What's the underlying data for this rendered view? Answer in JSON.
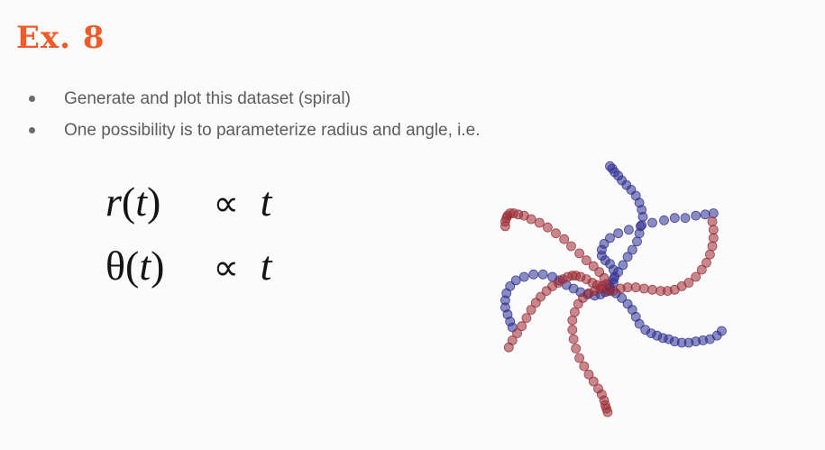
{
  "title": "Ex. 8",
  "bullets": [
    "Generate and plot this dataset (spiral)",
    "One possibility is to parameterize radius and angle, i.e."
  ],
  "formulas": [
    {
      "lhs_symbol": "r",
      "lhs_arg_open": "(",
      "lhs_arg": "t",
      "lhs_arg_close": ")",
      "operator": "∝",
      "rhs": "t"
    },
    {
      "lhs_symbol": "θ",
      "lhs_arg_open": "(",
      "lhs_arg": "t",
      "lhs_arg_close": ")",
      "operator": "∝",
      "rhs": "t"
    }
  ],
  "colors": {
    "title": "#f05a28",
    "class_a": "#2e2f8f",
    "class_b": "#9b2a33"
  },
  "chart_data": {
    "type": "scatter",
    "title": "",
    "xlabel": "",
    "ylabel": "",
    "grid": false,
    "axes_visible": false,
    "xlim": [
      -1.15,
      1.15
    ],
    "ylim": [
      -1.15,
      1.15
    ],
    "series": [
      {
        "color": "#2e2f8f",
        "arms": [
          {
            "t": [
              0.05,
              0.1,
              0.15,
              0.2,
              0.25,
              0.3,
              0.35,
              0.4,
              0.45,
              0.5,
              0.55,
              0.6,
              0.65,
              0.7,
              0.75,
              0.8,
              0.85,
              0.9,
              0.95,
              1.0
            ],
            "x": [
              0.05,
              0.08,
              0.09,
              0.08,
              0.05,
              0.01,
              -0.02,
              -0.02,
              0.0,
              0.05,
              0.12,
              0.21,
              0.31,
              0.41,
              0.51,
              0.6,
              0.69,
              0.78,
              0.86,
              0.93
            ],
            "y": [
              0.01,
              0.05,
              0.1,
              0.16,
              0.21,
              0.24,
              0.28,
              0.33,
              0.38,
              0.43,
              0.47,
              0.5,
              0.53,
              0.56,
              0.58,
              0.6,
              0.6,
              0.62,
              0.63,
              0.64
            ]
          },
          {
            "t": [
              0.05,
              0.1,
              0.15,
              0.2,
              0.25,
              0.3,
              0.35,
              0.4,
              0.45,
              0.5,
              0.55,
              0.6,
              0.65,
              0.7,
              0.75,
              0.8,
              0.85,
              0.9,
              0.95,
              1.0
            ],
            "x": [
              0.01,
              -0.03,
              -0.08,
              -0.14,
              -0.2,
              -0.26,
              -0.32,
              -0.38,
              -0.44,
              -0.52,
              -0.6,
              -0.68,
              -0.75,
              -0.8,
              -0.83,
              -0.84,
              -0.84,
              -0.82,
              -0.8,
              -0.78
            ],
            "y": [
              -0.03,
              -0.05,
              -0.06,
              -0.05,
              -0.03,
              0.0,
              0.03,
              0.07,
              0.1,
              0.12,
              0.12,
              0.1,
              0.07,
              0.02,
              -0.04,
              -0.1,
              -0.16,
              -0.22,
              -0.28,
              -0.33
            ]
          },
          {
            "t": [
              0.05,
              0.1,
              0.15,
              0.2,
              0.25,
              0.3,
              0.35,
              0.4,
              0.45,
              0.5,
              0.55,
              0.6,
              0.65,
              0.7,
              0.75,
              0.8,
              0.85,
              0.9,
              0.95,
              1.0
            ],
            "x": [
              0.05,
              0.1,
              0.15,
              0.2,
              0.24,
              0.27,
              0.3,
              0.35,
              0.4,
              0.45,
              0.5,
              0.55,
              0.6,
              0.66,
              0.72,
              0.78,
              0.84,
              0.9,
              0.96,
              1.0
            ],
            "y": [
              -0.02,
              -0.04,
              -0.08,
              -0.13,
              -0.18,
              -0.24,
              -0.3,
              -0.35,
              -0.38,
              -0.4,
              -0.42,
              -0.43,
              -0.45,
              -0.46,
              -0.46,
              -0.45,
              -0.44,
              -0.43,
              -0.4,
              -0.36
            ]
          },
          {
            "t": [
              0.05,
              0.1,
              0.15,
              0.2,
              0.25,
              0.3,
              0.35,
              0.4,
              0.45,
              0.5,
              0.55,
              0.6,
              0.65,
              0.7,
              0.75,
              0.8,
              0.85,
              0.9,
              0.95,
              1.0
            ],
            "x": [
              0.04,
              0.08,
              0.12,
              0.16,
              0.2,
              0.24,
              0.28,
              0.3,
              0.32,
              0.33,
              0.32,
              0.3,
              0.27,
              0.23,
              0.19,
              0.15,
              0.12,
              0.09,
              0.07,
              0.05
            ],
            "y": [
              0.03,
              0.08,
              0.14,
              0.2,
              0.27,
              0.33,
              0.4,
              0.47,
              0.54,
              0.61,
              0.67,
              0.73,
              0.79,
              0.84,
              0.88,
              0.92,
              0.96,
              0.99,
              1.02,
              1.04
            ]
          }
        ]
      },
      {
        "color": "#9b2a33",
        "arms": [
          {
            "t": [
              0.05,
              0.1,
              0.15,
              0.2,
              0.25,
              0.3,
              0.35,
              0.4,
              0.45,
              0.5,
              0.55,
              0.6,
              0.65,
              0.7,
              0.75,
              0.8,
              0.85,
              0.9,
              0.95,
              1.0
            ],
            "x": [
              0.02,
              0.0,
              -0.04,
              -0.09,
              -0.15,
              -0.21,
              -0.28,
              -0.34,
              -0.41,
              -0.48,
              -0.55,
              -0.62,
              -0.68,
              -0.73,
              -0.77,
              -0.8,
              -0.82,
              -0.83,
              -0.84,
              -0.84
            ],
            "y": [
              0.04,
              0.09,
              0.14,
              0.19,
              0.24,
              0.3,
              0.36,
              0.42,
              0.47,
              0.52,
              0.56,
              0.59,
              0.62,
              0.63,
              0.64,
              0.64,
              0.62,
              0.6,
              0.57,
              0.53
            ]
          },
          {
            "t": [
              0.05,
              0.1,
              0.15,
              0.2,
              0.25,
              0.3,
              0.35,
              0.4,
              0.45,
              0.5,
              0.55,
              0.6,
              0.65,
              0.7,
              0.75,
              0.8,
              0.85,
              0.9,
              0.95,
              1.0
            ],
            "x": [
              -0.03,
              -0.08,
              -0.13,
              -0.18,
              -0.22,
              -0.25,
              -0.27,
              -0.27,
              -0.26,
              -0.24,
              -0.21,
              -0.17,
              -0.13,
              -0.09,
              -0.05,
              -0.02,
              0.0,
              0.01,
              0.02,
              0.03
            ],
            "y": [
              0.0,
              -0.02,
              -0.04,
              -0.08,
              -0.13,
              -0.2,
              -0.27,
              -0.35,
              -0.43,
              -0.51,
              -0.59,
              -0.66,
              -0.73,
              -0.79,
              -0.85,
              -0.9,
              -0.95,
              -0.99,
              -1.02,
              -1.05
            ]
          },
          {
            "t": [
              0.05,
              0.1,
              0.15,
              0.2,
              0.25,
              0.3,
              0.35,
              0.4,
              0.45,
              0.5,
              0.55,
              0.6,
              0.65,
              0.7,
              0.75,
              0.8,
              0.85,
              0.9,
              0.95,
              1.0
            ],
            "x": [
              0.03,
              0.08,
              0.14,
              0.2,
              0.27,
              0.34,
              0.41,
              0.48,
              0.54,
              0.6,
              0.66,
              0.72,
              0.78,
              0.83,
              0.87,
              0.9,
              0.92,
              0.93,
              0.93,
              0.92
            ],
            "y": [
              -0.02,
              -0.02,
              0.0,
              0.01,
              0.01,
              0.0,
              -0.01,
              -0.02,
              -0.02,
              -0.01,
              0.02,
              0.05,
              0.1,
              0.16,
              0.22,
              0.29,
              0.36,
              0.43,
              0.5,
              0.57
            ]
          },
          {
            "t": [
              0.05,
              0.1,
              0.15,
              0.2,
              0.25,
              0.3,
              0.35,
              0.4,
              0.45,
              0.5,
              0.55,
              0.6,
              0.65,
              0.7,
              0.75,
              0.8,
              0.85,
              0.9,
              0.95,
              1.0
            ],
            "x": [
              -0.02,
              -0.06,
              -0.1,
              -0.15,
              -0.2,
              -0.24,
              -0.27,
              -0.31,
              -0.35,
              -0.39,
              -0.44,
              -0.49,
              -0.54,
              -0.58,
              -0.62,
              -0.66,
              -0.7,
              -0.74,
              -0.78,
              -0.81
            ],
            "y": [
              0.02,
              0.03,
              0.05,
              0.08,
              0.1,
              0.11,
              0.11,
              0.1,
              0.08,
              0.05,
              0.02,
              -0.02,
              -0.07,
              -0.12,
              -0.18,
              -0.25,
              -0.32,
              -0.38,
              -0.44,
              -0.5
            ]
          }
        ]
      }
    ]
  }
}
